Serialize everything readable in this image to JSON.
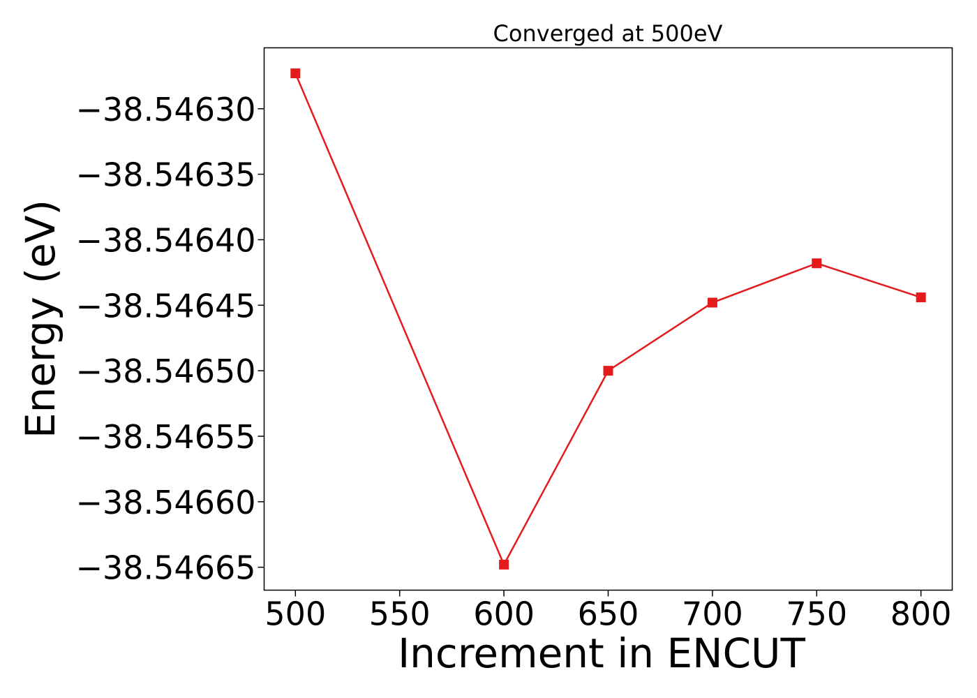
{
  "chart_data": {
    "type": "line",
    "title": "Converged at 500eV",
    "xlabel": "Increment in ENCUT",
    "ylabel": "Energy (eV)",
    "x": [
      500,
      600,
      650,
      700,
      750,
      800
    ],
    "series": [
      {
        "values": [
          -38.546273,
          -38.546648,
          -38.5465,
          -38.546448,
          -38.546418,
          -38.546444
        ],
        "color": "#e41a1c",
        "marker": "square"
      }
    ],
    "xticks": [
      500,
      550,
      600,
      650,
      700,
      750,
      800
    ],
    "xtick_labels": [
      "500",
      "550",
      "600",
      "650",
      "700",
      "750",
      "800"
    ],
    "yticks": [
      -38.5463,
      -38.54635,
      -38.5464,
      -38.54645,
      -38.5465,
      -38.54655,
      -38.5466,
      -38.54665
    ],
    "ytick_labels": [
      "−38.54630",
      "−38.54635",
      "−38.54640",
      "−38.54645",
      "−38.54650",
      "−38.54655",
      "−38.54660",
      "−38.54665"
    ],
    "xlim": [
      485,
      815
    ],
    "ylim": [
      -38.5466675,
      -38.5462535
    ],
    "grid": false,
    "legend": "none"
  }
}
